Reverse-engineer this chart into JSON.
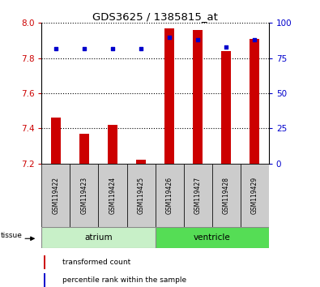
{
  "title": "GDS3625 / 1385815_at",
  "samples": [
    "GSM119422",
    "GSM119423",
    "GSM119424",
    "GSM119425",
    "GSM119426",
    "GSM119427",
    "GSM119428",
    "GSM119429"
  ],
  "transformed_count": [
    7.46,
    7.37,
    7.42,
    7.22,
    7.97,
    7.96,
    7.84,
    7.91
  ],
  "percentile_rank": [
    82,
    82,
    82,
    82,
    90,
    88,
    83,
    88
  ],
  "ylim_left": [
    7.2,
    8.0
  ],
  "ylim_right": [
    0,
    100
  ],
  "yticks_left": [
    7.2,
    7.4,
    7.6,
    7.8,
    8.0
  ],
  "yticks_right": [
    0,
    25,
    50,
    75,
    100
  ],
  "groups": [
    {
      "name": "atrium",
      "indices": [
        0,
        1,
        2,
        3
      ],
      "color": "#c8f0c8"
    },
    {
      "name": "ventricle",
      "indices": [
        4,
        5,
        6,
        7
      ],
      "color": "#55dd55"
    }
  ],
  "bar_color": "#cc0000",
  "dot_color": "#0000cc",
  "bar_bottom": 7.2,
  "tissue_label": "tissue",
  "legend_bar": "transformed count",
  "legend_dot": "percentile rank within the sample",
  "tick_color_left": "#cc0000",
  "tick_color_right": "#0000cc",
  "bg_color": "#ffffff",
  "sample_bg": "#cccccc",
  "bar_width": 0.35
}
